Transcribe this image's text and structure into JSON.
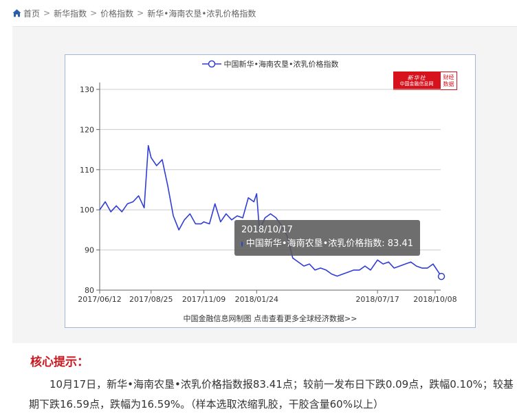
{
  "breadcrumb": {
    "home": "首页",
    "items": [
      "新华指数",
      "价格指数",
      "新华•海南农垦•浓乳价格指数"
    ]
  },
  "chart_data": {
    "type": "line",
    "series": [
      {
        "name": "中国新华•海南农垦•浓乳价格指数",
        "x": [
          "2017/06/12",
          "2017/06/20",
          "2017/06/28",
          "2017/07/06",
          "2017/07/14",
          "2017/07/22",
          "2017/07/30",
          "2017/08/07",
          "2017/08/15",
          "2017/08/21",
          "2017/08/25",
          "2017/09/02",
          "2017/09/10",
          "2017/09/18",
          "2017/09/26",
          "2017/10/04",
          "2017/10/12",
          "2017/10/20",
          "2017/10/28",
          "2017/11/05",
          "2017/11/09",
          "2017/11/17",
          "2017/11/25",
          "2017/12/03",
          "2017/12/11",
          "2017/12/19",
          "2017/12/27",
          "2018/01/04",
          "2018/01/12",
          "2018/01/20",
          "2018/01/24",
          "2018/01/28",
          "2018/02/05",
          "2018/02/13",
          "2018/02/21",
          "2018/03/01",
          "2018/03/09",
          "2018/03/17",
          "2018/03/25",
          "2018/04/02",
          "2018/04/10",
          "2018/04/18",
          "2018/04/26",
          "2018/05/04",
          "2018/05/12",
          "2018/05/20",
          "2018/05/28",
          "2018/06/05",
          "2018/06/13",
          "2018/06/21",
          "2018/06/29",
          "2018/07/07",
          "2018/07/17",
          "2018/07/25",
          "2018/08/02",
          "2018/08/10",
          "2018/08/18",
          "2018/08/26",
          "2018/09/03",
          "2018/09/11",
          "2018/09/19",
          "2018/09/27",
          "2018/10/05",
          "2018/10/17"
        ],
        "values": [
          100,
          102,
          99.5,
          101,
          99.5,
          101.5,
          102,
          103.5,
          100.5,
          116,
          113,
          111,
          112.5,
          106,
          98.5,
          95,
          97.5,
          99,
          96.5,
          96.5,
          97,
          96.5,
          101.5,
          97,
          99,
          97.5,
          98.5,
          98,
          103,
          102,
          104,
          95,
          98,
          99,
          98,
          96,
          93.5,
          88,
          87,
          86,
          86.5,
          85,
          85.5,
          85,
          84,
          83.5,
          84,
          84.5,
          85,
          85,
          86,
          85,
          87.5,
          86.5,
          87,
          85.5,
          86,
          86.5,
          87,
          86,
          85.5,
          85.5,
          86.5,
          83.41
        ]
      }
    ],
    "xticks": [
      "2017/06/12",
      "2017/08/25",
      "2017/11/09",
      "2018/01/24",
      "2018/07/17",
      "2018/10/08"
    ],
    "yticks": [
      80,
      90,
      100,
      110,
      120,
      130
    ],
    "ylim": [
      80,
      130
    ],
    "grid": true,
    "legend": "top-center",
    "line_color": "#2f3cd6",
    "tooltip": {
      "date": "2018/10/17",
      "series": "中国新华•海南农垦•浓乳价格指数",
      "value": "83.41"
    },
    "credit": "中国金融信息网制图 点击查看更多全球经济数据>>"
  },
  "logo": {
    "brand": "新华社",
    "sub": "中国金融信息网",
    "tag1": "财经",
    "tag2": "数据"
  },
  "note": {
    "title": "核心提示：",
    "text": "10月17日，新华•海南农垦•浓乳价格指数报83.41点；较前一发布日下跌0.09点，跌幅0.10%；较基期下跌16.59点，跌幅为16.59%。（样本选取浓缩乳胶，干胶含量60%以上）"
  },
  "colors": {
    "accent_red": "#c8181f",
    "line": "#2f3cd6",
    "chart_border": "#9fb8d8"
  }
}
